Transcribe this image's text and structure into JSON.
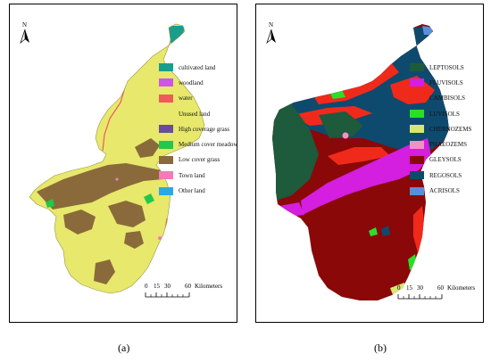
{
  "panels": [
    {
      "id": "a",
      "caption": "(a)",
      "north_label": "N",
      "legend": [
        {
          "label": "cultivated land",
          "color": "#1a9e8c"
        },
        {
          "label": "woodland",
          "color": "#cc55e8"
        },
        {
          "label": "water",
          "color": "#f05a5a"
        },
        {
          "label": "Unused land",
          "color": "#e7e86c"
        },
        {
          "label": "High coverage grass",
          "color": "#6a4c9c"
        },
        {
          "label": "Medium cover meadow",
          "color": "#22c84a"
        },
        {
          "label": "Low cover grass",
          "color": "#8a6a3a"
        },
        {
          "label": "Town land",
          "color": "#f47ab8"
        },
        {
          "label": "Other land",
          "color": "#29a8e6"
        }
      ],
      "scale": {
        "ticks": [
          "0",
          "15",
          "30",
          "60"
        ],
        "unit": "Kilometers"
      }
    },
    {
      "id": "b",
      "caption": "(b)",
      "north_label": "N",
      "legend": [
        {
          "label": "LEPTOSOLS",
          "color": "#1e5a3c"
        },
        {
          "label": "FLUVISOLS",
          "color": "#d41ee0"
        },
        {
          "label": "CAMBISOLS",
          "color": "#f02a1a"
        },
        {
          "label": "LUVISOLS",
          "color": "#28e028"
        },
        {
          "label": "CHERNOZEMS",
          "color": "#d6e870"
        },
        {
          "label": "PHAEOZEMS",
          "color": "#f490c8"
        },
        {
          "label": "GLEYSOLS",
          "color": "#8a0808"
        },
        {
          "label": "REGOSOLS",
          "color": "#0e4a6e"
        },
        {
          "label": "ACRISOLS",
          "color": "#5c8ed8"
        }
      ],
      "scale": {
        "ticks": [
          "0",
          "15",
          "30",
          "60"
        ],
        "unit": "Kilometers"
      }
    }
  ]
}
